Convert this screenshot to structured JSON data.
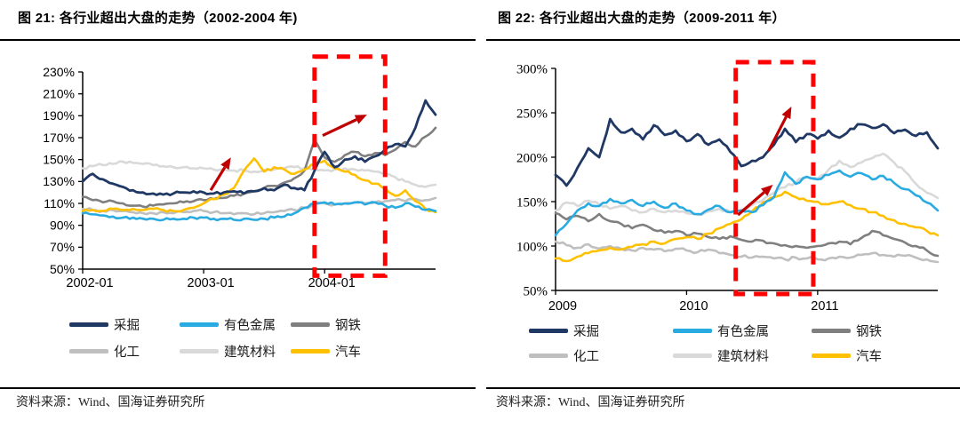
{
  "page": {
    "background": "#ffffff"
  },
  "panels": [
    {
      "title": "图 21:  各行业超出大盘的走势（2002-2004 年)",
      "source": "资料来源：Wind、国海证券研究所"
    },
    {
      "title": "图 22:  各行业超出大盘的走势（2009-2011 年）",
      "source": "资料来源：Wind、国海证券研究所"
    }
  ],
  "colors": {
    "caiju_navy": "#1F3864",
    "youse_cyan": "#29ABE2",
    "gangtie_gray": "#7F7F7F",
    "huagong_gray": "#BFBFBF",
    "jianzhu_gray": "#D9D9D9",
    "qiche_gold": "#FFC000",
    "highlight_red": "#FF0000",
    "arrow_dark_red": "#C00000",
    "axis_black": "#000000"
  },
  "chart_data": [
    {
      "type": "line",
      "title": "各行业超出大盘的走势（2002-2004年）",
      "xlabel": "",
      "ylabel": "",
      "y_unit": "%",
      "grid": false,
      "legend_position": "bottom",
      "ylim": [
        50,
        230
      ],
      "y_ticks": [
        230,
        210,
        190,
        170,
        150,
        130,
        110,
        90,
        70,
        50
      ],
      "x": [
        "2002-01",
        "2002-02",
        "2002-03",
        "2002-04",
        "2002-05",
        "2002-06",
        "2002-07",
        "2002-08",
        "2002-09",
        "2002-10",
        "2002-11",
        "2002-12",
        "2003-01",
        "2003-02",
        "2003-03",
        "2003-04",
        "2003-05",
        "2003-06",
        "2003-07",
        "2003-08",
        "2003-09",
        "2003-10",
        "2003-11",
        "2003-12",
        "2004-01",
        "2004-02",
        "2004-03",
        "2004-04",
        "2004-05",
        "2004-06",
        "2004-07",
        "2004-08",
        "2004-09",
        "2004-10",
        "2004-11",
        "2004-12"
      ],
      "x_tick_labels": [
        "2002-01",
        "2003-01",
        "2004-01"
      ],
      "x_tick_indices": [
        0,
        12,
        24
      ],
      "series": [
        {
          "name": "采掘",
          "color": "#1F3864",
          "values": [
            130,
            137,
            132,
            128,
            125,
            122,
            120,
            119,
            118,
            119,
            120,
            121,
            120,
            119,
            120,
            121,
            119,
            121,
            124,
            122,
            127,
            124,
            122,
            140,
            157,
            143,
            150,
            153,
            148,
            153,
            159,
            164,
            162,
            179,
            204,
            191
          ]
        },
        {
          "name": "有色金属",
          "color": "#29ABE2",
          "values": [
            101,
            100,
            99,
            98,
            97,
            97,
            96,
            96,
            95,
            96,
            96,
            97,
            97,
            96,
            96,
            95,
            96,
            95,
            96,
            97,
            98,
            101,
            106,
            110,
            111,
            109,
            110,
            111,
            109,
            111,
            108,
            106,
            110,
            107,
            104,
            103
          ]
        },
        {
          "name": "钢铁",
          "color": "#7F7F7F",
          "values": [
            116,
            113,
            111,
            112,
            110,
            108,
            107,
            108,
            109,
            110,
            111,
            112,
            113,
            114,
            115,
            117,
            119,
            121,
            124,
            126,
            129,
            133,
            140,
            168,
            152,
            148,
            154,
            157,
            153,
            156,
            154,
            159,
            166,
            162,
            171,
            179
          ]
        },
        {
          "name": "化工",
          "color": "#BFBFBF",
          "values": [
            105,
            104,
            103,
            104,
            103,
            102,
            101,
            101,
            102,
            101,
            102,
            103,
            103,
            102,
            101,
            100,
            101,
            100,
            101,
            102,
            103,
            104,
            106,
            109,
            110,
            109,
            110,
            111,
            110,
            111,
            112,
            113,
            112,
            114,
            113,
            115
          ]
        },
        {
          "name": "建筑材料",
          "color": "#D9D9D9",
          "values": [
            142,
            144,
            145,
            146,
            148,
            147,
            146,
            145,
            144,
            143,
            143,
            142,
            142,
            141,
            141,
            140,
            140,
            139,
            140,
            141,
            142,
            143,
            142,
            141,
            140,
            141,
            142,
            141,
            140,
            139,
            137,
            134,
            130,
            127,
            125,
            127
          ]
        },
        {
          "name": "汽车",
          "color": "#FFC000",
          "values": [
            103,
            104,
            103,
            105,
            104,
            105,
            104,
            105,
            104,
            103,
            104,
            106,
            110,
            114,
            118,
            124,
            140,
            151,
            139,
            143,
            141,
            137,
            141,
            146,
            149,
            142,
            139,
            136,
            131,
            128,
            124,
            117,
            122,
            112,
            105,
            102
          ]
        }
      ],
      "annotations": {
        "highlight_box": {
          "color": "#FF0000",
          "x_index_range": [
            23,
            30
          ],
          "y_value_range": [
            44,
            244
          ]
        },
        "arrows": [
          {
            "color": "#C00000",
            "from": {
              "x_index": 12.7,
              "value": 122
            },
            "to": {
              "x_index": 14.7,
              "value": 152
            }
          },
          {
            "color": "#C00000",
            "from": {
              "x_index": 23.8,
              "value": 172
            },
            "to": {
              "x_index": 28.2,
              "value": 191
            }
          }
        ]
      }
    },
    {
      "type": "line",
      "title": "各行业超出大盘的走势（2009-2011年）",
      "xlabel": "",
      "ylabel": "",
      "y_unit": "%",
      "grid": false,
      "legend_position": "bottom",
      "ylim": [
        50,
        300
      ],
      "y_ticks": [
        300,
        250,
        200,
        150,
        100,
        50
      ],
      "x": [
        "2009-01",
        "2009-02",
        "2009-03",
        "2009-04",
        "2009-05",
        "2009-06",
        "2009-07",
        "2009-08",
        "2009-09",
        "2009-10",
        "2009-11",
        "2009-12",
        "2010-01",
        "2010-02",
        "2010-03",
        "2010-04",
        "2010-05",
        "2010-06",
        "2010-07",
        "2010-08",
        "2010-09",
        "2010-10",
        "2010-11",
        "2010-12",
        "2011-01",
        "2011-02",
        "2011-03",
        "2011-04",
        "2011-05",
        "2011-06",
        "2011-07",
        "2011-08",
        "2011-09",
        "2011-10",
        "2011-11",
        "2011-12"
      ],
      "x_tick_labels": [
        "2009",
        "2010",
        "2011"
      ],
      "x_tick_indices": [
        0,
        12,
        24
      ],
      "series": [
        {
          "name": "采掘",
          "color": "#1F3864",
          "values": [
            180,
            168,
            188,
            210,
            200,
            243,
            228,
            232,
            220,
            236,
            225,
            230,
            218,
            226,
            214,
            220,
            206,
            190,
            196,
            200,
            214,
            232,
            217,
            226,
            221,
            230,
            222,
            232,
            237,
            233,
            237,
            227,
            231,
            224,
            228,
            210
          ]
        },
        {
          "name": "有色金属",
          "color": "#29ABE2",
          "values": [
            112,
            125,
            140,
            148,
            145,
            153,
            148,
            152,
            145,
            150,
            143,
            148,
            140,
            136,
            141,
            145,
            138,
            140,
            138,
            146,
            155,
            183,
            170,
            178,
            175,
            180,
            185,
            178,
            182,
            175,
            179,
            171,
            164,
            157,
            149,
            140
          ]
        },
        {
          "name": "钢铁",
          "color": "#7F7F7F",
          "values": [
            137,
            130,
            134,
            128,
            136,
            128,
            125,
            120,
            124,
            118,
            115,
            117,
            112,
            114,
            110,
            108,
            111,
            107,
            105,
            106,
            103,
            101,
            100,
            98,
            100,
            103,
            105,
            102,
            109,
            117,
            112,
            108,
            104,
            100,
            95,
            89
          ]
        },
        {
          "name": "化工",
          "color": "#BFBFBF",
          "values": [
            105,
            101,
            98,
            102,
            97,
            100,
            97,
            95,
            98,
            96,
            94,
            97,
            95,
            93,
            96,
            92,
            90,
            88,
            87,
            88,
            86,
            85,
            87,
            86,
            85,
            86,
            88,
            87,
            90,
            92,
            90,
            88,
            89,
            87,
            85,
            82
          ]
        },
        {
          "name": "建筑材料",
          "color": "#D9D9D9",
          "values": [
            140,
            149,
            145,
            151,
            147,
            142,
            145,
            140,
            138,
            142,
            138,
            140,
            137,
            135,
            139,
            142,
            138,
            141,
            146,
            152,
            160,
            166,
            172,
            178,
            176,
            186,
            196,
            189,
            194,
            199,
            204,
            194,
            184,
            170,
            160,
            154
          ]
        },
        {
          "name": "汽车",
          "color": "#FFC000",
          "values": [
            86,
            83,
            88,
            92,
            95,
            98,
            96,
            99,
            102,
            105,
            103,
            108,
            110,
            108,
            114,
            120,
            125,
            130,
            139,
            149,
            155,
            161,
            155,
            151,
            150,
            147,
            150,
            146,
            142,
            138,
            134,
            129,
            125,
            121,
            117,
            112
          ]
        }
      ],
      "annotations": {
        "highlight_box": {
          "color": "#FF0000",
          "x_index_range": [
            16.5,
            23.6
          ],
          "y_value_range": [
            46,
            307
          ]
        },
        "arrows": [
          {
            "color": "#C00000",
            "from": {
              "x_index": 16.7,
              "value": 135
            },
            "to": {
              "x_index": 19.9,
              "value": 169
            }
          },
          {
            "color": "#C00000",
            "from": {
              "x_index": 19.5,
              "value": 207
            },
            "to": {
              "x_index": 21.6,
              "value": 257
            }
          }
        ]
      }
    }
  ]
}
